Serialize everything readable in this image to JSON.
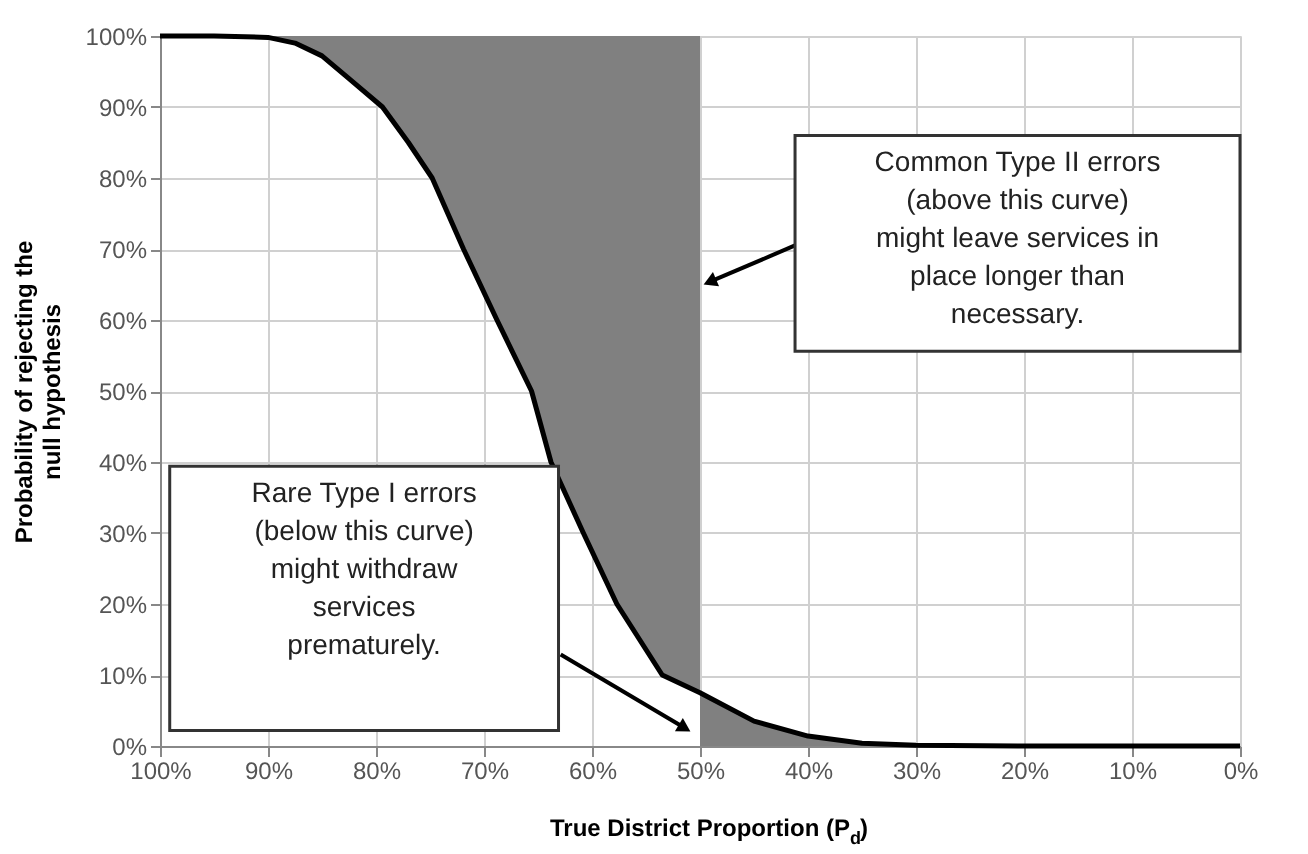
{
  "chart_data": {
    "type": "line",
    "xlabel": "True District Proportion (P$_{d}$)",
    "ylabel": "Probability of rejecting the null hypothesis",
    "x": [
      100,
      95,
      90,
      87.5,
      85,
      82.5,
      79.4,
      77,
      74.8,
      71.9,
      68.8,
      65.6,
      63.8,
      60.8,
      57.7,
      53.5,
      50,
      50,
      45,
      40,
      35,
      30,
      20,
      10,
      0
    ],
    "series": [
      {
        "color": "#000000",
        "values": [
          100,
          100,
          99.8,
          99,
          97.2,
          94,
          90,
          85,
          80,
          70,
          60,
          50,
          40,
          30,
          20,
          10,
          7.5,
          7.5,
          3.5,
          1.4,
          0.4,
          0.1,
          0,
          0,
          0
        ],
        "lower": [
          null,
          null,
          99.8,
          99,
          97.2,
          94,
          90,
          85,
          80,
          70,
          60,
          50,
          40,
          30,
          20,
          10,
          7.5,
          0,
          0,
          0,
          0,
          0,
          null,
          null,
          null
        ],
        "upper": [
          null,
          null,
          100,
          100,
          100,
          100,
          100,
          100,
          100,
          100,
          100,
          100,
          100,
          100,
          100,
          100,
          100,
          7.5,
          3.5,
          1.4,
          0.4,
          0.1,
          null,
          null,
          null
        ]
      }
    ],
    "xlim": [
      100,
      0
    ],
    "xticks": [
      {
        "value": 100,
        "label": "100%"
      },
      {
        "value": 90,
        "label": "90%"
      },
      {
        "value": 80,
        "label": "80%"
      },
      {
        "value": 70,
        "label": "70%"
      },
      {
        "value": 60,
        "label": "60%"
      },
      {
        "value": 50,
        "label": "50%"
      },
      {
        "value": 40,
        "label": "40%"
      },
      {
        "value": 30,
        "label": "30%"
      },
      {
        "value": 20,
        "label": "20%"
      },
      {
        "value": 10,
        "label": "10%"
      },
      {
        "value": 0,
        "label": "0%"
      }
    ],
    "ylim": [
      0,
      100
    ],
    "yticks": [
      {
        "value": 0,
        "label": "0%"
      },
      {
        "value": 10,
        "label": "10%"
      },
      {
        "value": 20,
        "label": "20%"
      },
      {
        "value": 30,
        "label": "30%"
      },
      {
        "value": 40,
        "label": "40%"
      },
      {
        "value": 50,
        "label": "50%"
      },
      {
        "value": 60,
        "label": "60%"
      },
      {
        "value": 70,
        "label": "70%"
      },
      {
        "value": 80,
        "label": "80%"
      },
      {
        "value": 90,
        "label": "90%"
      },
      {
        "value": 100,
        "label": "100%"
      }
    ],
    "annotations": [
      "Common Type II errors (above this curve) might leave services in place longer than necessary.",
      "Rare Type I errors (below this curve) might withdraw services prematurely."
    ],
    "grid": true,
    "marker": "none",
    "line_style": "solid"
  }
}
